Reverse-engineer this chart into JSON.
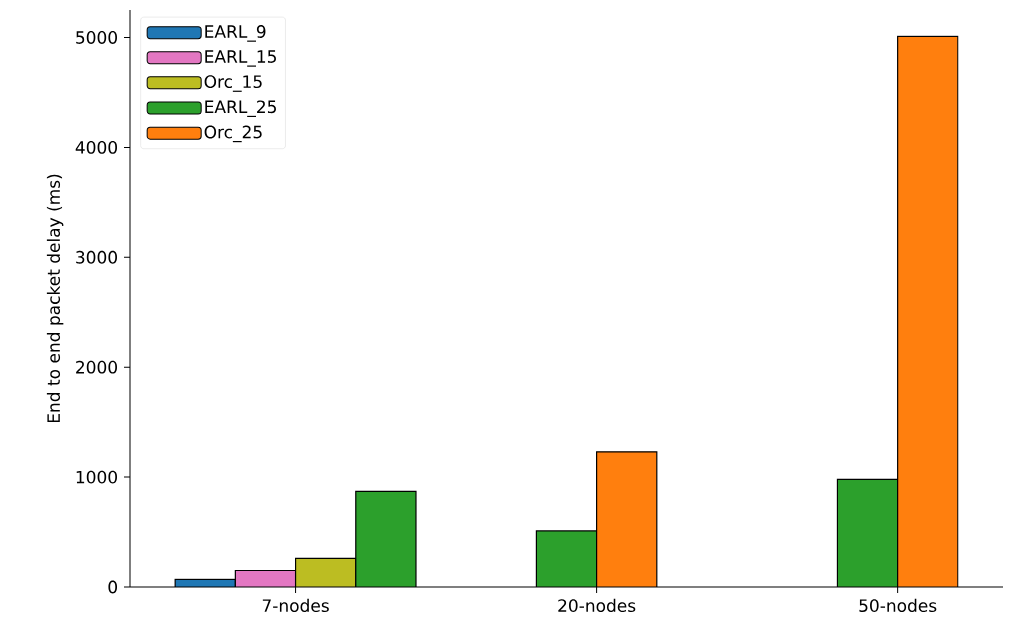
{
  "chart_data": {
    "type": "bar",
    "ylabel": "End to end packet delay (ms)",
    "categories": [
      "7-nodes",
      "20-nodes",
      "50-nodes"
    ],
    "series": [
      {
        "name": "EARL_9",
        "color": "#1f77b4",
        "values": [
          70,
          null,
          null
        ]
      },
      {
        "name": "EARL_15",
        "color": "#e377c2",
        "values": [
          150,
          null,
          null
        ]
      },
      {
        "name": "Orc_15",
        "color": "#bcbd22",
        "values": [
          260,
          null,
          null
        ]
      },
      {
        "name": "EARL_25",
        "color": "#2ca02c",
        "values": [
          870,
          510,
          980
        ]
      },
      {
        "name": "Orc_25",
        "color": "#ff7f0e",
        "values": [
          null,
          1230,
          5010
        ]
      }
    ],
    "ylim": [
      0,
      5250
    ],
    "yticks": [
      0,
      1000,
      2000,
      3000,
      4000,
      5000
    ],
    "legend": "top left"
  }
}
